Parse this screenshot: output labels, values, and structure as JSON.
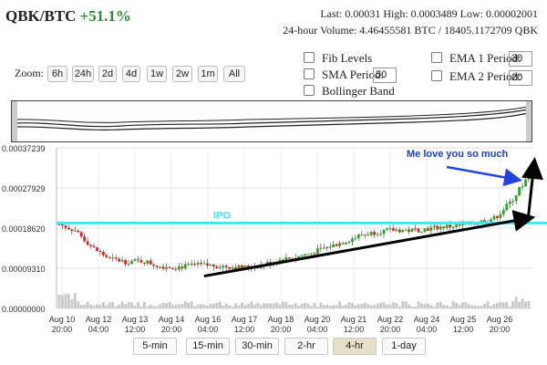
{
  "header": {
    "pair": "QBK/BTC",
    "change": "+51.1%",
    "stats_line1": "Last: 0.00031  High: 0.0003489  Low: 0.00002001",
    "stats_line2": "24-hour Volume: 4.46455581 BTC / 18405.1172709 QBK"
  },
  "zoom": {
    "label": "Zoom:",
    "buttons": [
      "6h",
      "24h",
      "2d",
      "4d",
      "1w",
      "2w",
      "1m",
      "All"
    ]
  },
  "options": {
    "fib_label": "Fib Levels",
    "sma_label": "SMA Period:",
    "sma_value": "50",
    "bollinger_label": "Bollinger Band",
    "ema1_label": "EMA 1 Period:",
    "ema1_value": "30",
    "ema2_label": "EMA 2 Period:",
    "ema2_value": "20"
  },
  "chart_data": {
    "type": "candlestick",
    "y_ticks": [
      "0.00037239",
      "0.00027929",
      "0.00018620",
      "0.00009310",
      "0.00000000"
    ],
    "ylim": [
      0,
      0.00037239
    ],
    "x_ticks": [
      [
        "Aug 10",
        "20:00"
      ],
      [
        "Aug 12",
        "04:00"
      ],
      [
        "Aug 13",
        "12:00"
      ],
      [
        "Aug 14",
        "20:00"
      ],
      [
        "Aug 16",
        "04:00"
      ],
      [
        "Aug 17",
        "12:00"
      ],
      [
        "Aug 18",
        "20:00"
      ],
      [
        "Aug 20",
        "04:00"
      ],
      [
        "Aug 21",
        "12:00"
      ],
      [
        "Aug 22",
        "20:00"
      ],
      [
        "Aug 24",
        "04:00"
      ],
      [
        "Aug 25",
        "12:00"
      ],
      [
        "Aug 26",
        "20:00"
      ]
    ],
    "up_color": "#22aa22",
    "down_color": "#dd2222",
    "close_path": [
      0.000195,
      0.00018,
      0.00014,
      0.000115,
      0.000108,
      0.00011,
      9.8e-05,
      9.6e-05,
      0.0001,
      0.0001,
      9.7e-05,
      9.5e-05,
      9.9e-05,
      0.000112,
      0.000118,
      0.000128,
      0.000142,
      0.000155,
      0.00017,
      0.000178,
      0.000182,
      0.000181,
      0.000185,
      0.00019,
      0.000192,
      0.0002,
      0.00021,
      0.00025,
      0.00031
    ],
    "ipo_level": 0.000198,
    "trend_line": [
      [
        0.31,
        7.5e-05
      ],
      [
        0.995,
        0.00021
      ]
    ],
    "annotations": {
      "ipo_label": "IPO",
      "message": "Me love you so much"
    }
  },
  "ranges": {
    "buttons": [
      "5-min",
      "15-min",
      "30-min",
      "2-hr",
      "4-hr",
      "1-day"
    ],
    "selected": "4-hr"
  },
  "colors": {
    "ipo_line": "#3de8ef",
    "message_text": "#1a3fd1",
    "arrow_blue": "#2244dd",
    "trend_black": "#000000"
  }
}
